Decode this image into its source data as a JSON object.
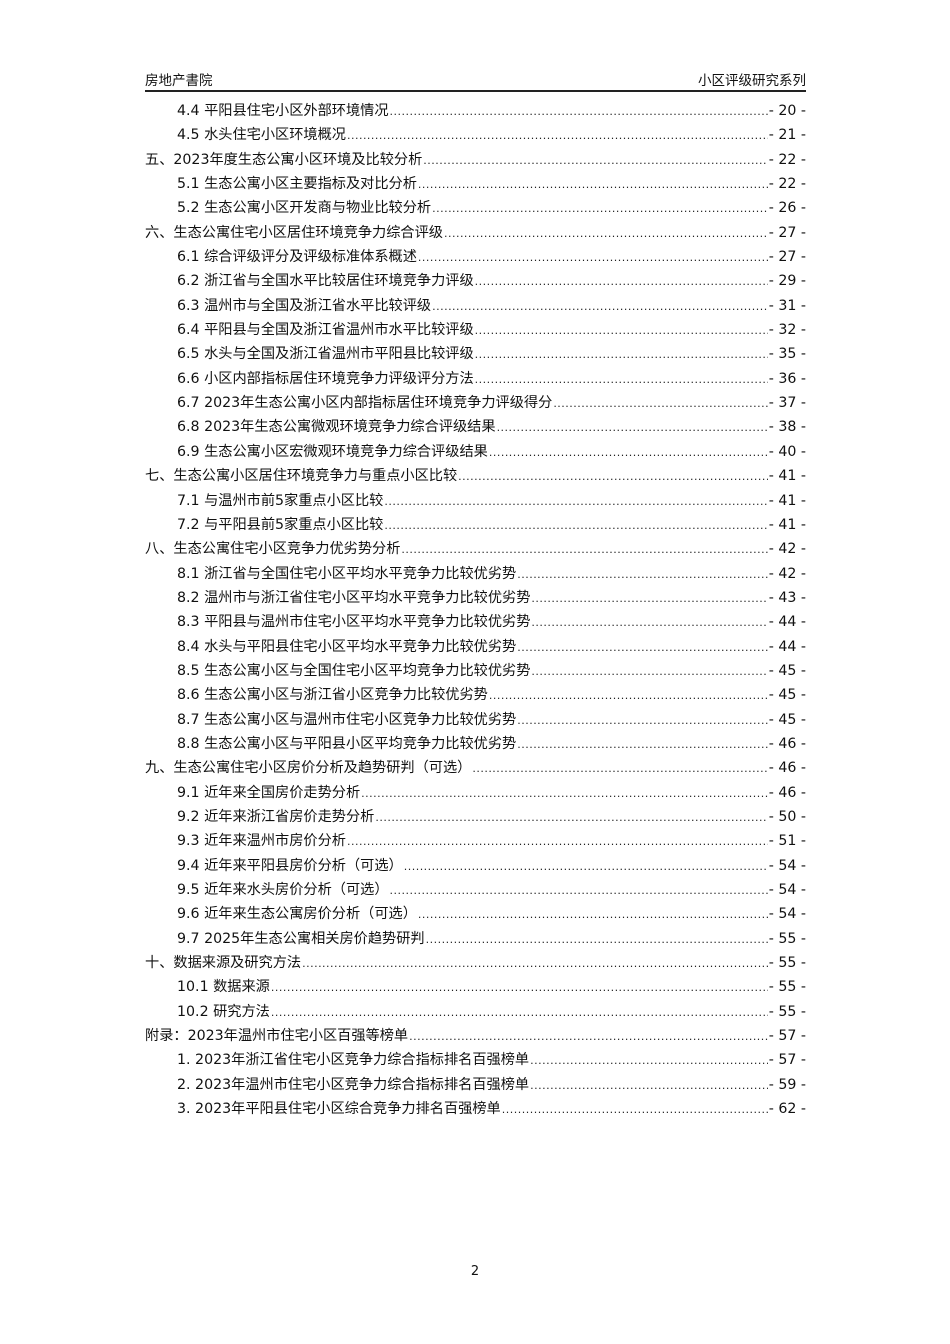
{
  "header": {
    "left": "房地产書院",
    "right": "小区评级研究系列"
  },
  "toc": [
    {
      "level": 2,
      "title": "4.4 平阳县住宅小区外部环境情况",
      "page": "- 20 -"
    },
    {
      "level": 2,
      "title": "4.5 水头住宅小区环境概况",
      "page": "- 21 -"
    },
    {
      "level": 1,
      "title": "五、2023年度生态公寓小区环境及比较分析",
      "page": "- 22 -"
    },
    {
      "level": 2,
      "title": "5.1 生态公寓小区主要指标及对比分析",
      "page": "- 22 -"
    },
    {
      "level": 2,
      "title": "5.2 生态公寓小区开发商与物业比较分析",
      "page": "- 26 -"
    },
    {
      "level": 1,
      "title": "六、生态公寓住宅小区居住环境竞争力综合评级",
      "page": "- 27 -"
    },
    {
      "level": 2,
      "title": "6.1 综合评级评分及评级标准体系概述",
      "page": "- 27 -"
    },
    {
      "level": 2,
      "title": "6.2 浙江省与全国水平比较居住环境竞争力评级",
      "page": "- 29 -"
    },
    {
      "level": 2,
      "title": "6.3 温州市与全国及浙江省水平比较评级",
      "page": "- 31 -"
    },
    {
      "level": 2,
      "title": "6.4 平阳县与全国及浙江省温州市水平比较评级",
      "page": "- 32 -"
    },
    {
      "level": 2,
      "title": "6.5 水头与全国及浙江省温州市平阳县比较评级",
      "page": "- 35 -"
    },
    {
      "level": 2,
      "title": "6.6 小区内部指标居住环境竞争力评级评分方法",
      "page": "- 36 -"
    },
    {
      "level": 2,
      "title": "6.7 2023年生态公寓小区内部指标居住环境竞争力评级得分",
      "page": "- 37 -"
    },
    {
      "level": 2,
      "title": "6.8 2023年生态公寓微观环境竞争力综合评级结果",
      "page": "- 38 -"
    },
    {
      "level": 2,
      "title": "6.9 生态公寓小区宏微观环境竞争力综合评级结果",
      "page": "- 40 -"
    },
    {
      "level": 1,
      "title": "七、生态公寓小区居住环境竞争力与重点小区比较",
      "page": "- 41 -"
    },
    {
      "level": 2,
      "title": "7.1 与温州市前5家重点小区比较",
      "page": "- 41 -"
    },
    {
      "level": 2,
      "title": "7.2 与平阳县前5家重点小区比较",
      "page": "- 41 -"
    },
    {
      "level": 1,
      "title": "八、生态公寓住宅小区竞争力优劣势分析",
      "page": "- 42 -"
    },
    {
      "level": 2,
      "title": "8.1 浙江省与全国住宅小区平均水平竞争力比较优劣势",
      "page": "- 42 -"
    },
    {
      "level": 2,
      "title": "8.2 温州市与浙江省住宅小区平均水平竞争力比较优劣势",
      "page": "- 43 -"
    },
    {
      "level": 2,
      "title": "8.3 平阳县与温州市住宅小区平均水平竞争力比较优劣势",
      "page": "- 44 -"
    },
    {
      "level": 2,
      "title": "8.4 水头与平阳县住宅小区平均水平竞争力比较优劣势",
      "page": "- 44 -"
    },
    {
      "level": 2,
      "title": "8.5 生态公寓小区与全国住宅小区平均竞争力比较优劣势",
      "page": "- 45 -"
    },
    {
      "level": 2,
      "title": "8.6 生态公寓小区与浙江省小区竞争力比较优劣势",
      "page": "- 45 -"
    },
    {
      "level": 2,
      "title": "8.7 生态公寓小区与温州市住宅小区竞争力比较优劣势",
      "page": "- 45 -"
    },
    {
      "level": 2,
      "title": "8.8 生态公寓小区与平阳县小区平均竞争力比较优劣势",
      "page": "- 46 -"
    },
    {
      "level": 1,
      "title": "九、生态公寓住宅小区房价分析及趋势研判（可选）",
      "page": "- 46 -"
    },
    {
      "level": 2,
      "title": "9.1 近年来全国房价走势分析",
      "page": "- 46 -"
    },
    {
      "level": 2,
      "title": "9.2 近年来浙江省房价走势分析",
      "page": "- 50 -"
    },
    {
      "level": 2,
      "title": "9.3 近年来温州市房价分析",
      "page": "- 51 -"
    },
    {
      "level": 2,
      "title": "9.4 近年来平阳县房价分析（可选）",
      "page": "- 54 -"
    },
    {
      "level": 2,
      "title": "9.5 近年来水头房价分析（可选）",
      "page": "- 54 -"
    },
    {
      "level": 2,
      "title": "9.6 近年来生态公寓房价分析（可选）",
      "page": "- 54 -"
    },
    {
      "level": 2,
      "title": "9.7 2025年生态公寓相关房价趋势研判",
      "page": "- 55 -"
    },
    {
      "level": 1,
      "title": "十、数据来源及研究方法",
      "page": "- 55 -"
    },
    {
      "level": 2,
      "title": "10.1 数据来源",
      "page": "- 55 -"
    },
    {
      "level": 2,
      "title": "10.2 研究方法",
      "page": "- 55 -"
    },
    {
      "level": 1,
      "title": "附录：2023年温州市住宅小区百强等榜单",
      "page": "- 57 -"
    },
    {
      "level": 2,
      "title": "1. 2023年浙江省住宅小区竞争力综合指标排名百强榜单",
      "page": "- 57 -"
    },
    {
      "level": 2,
      "title": "2. 2023年温州市住宅小区竞争力综合指标排名百强榜单",
      "page": "- 59 -"
    },
    {
      "level": 2,
      "title": "3. 2023年平阳县住宅小区综合竞争力排名百强榜单",
      "page": "- 62 -"
    }
  ],
  "footer": {
    "page_number": "2"
  }
}
